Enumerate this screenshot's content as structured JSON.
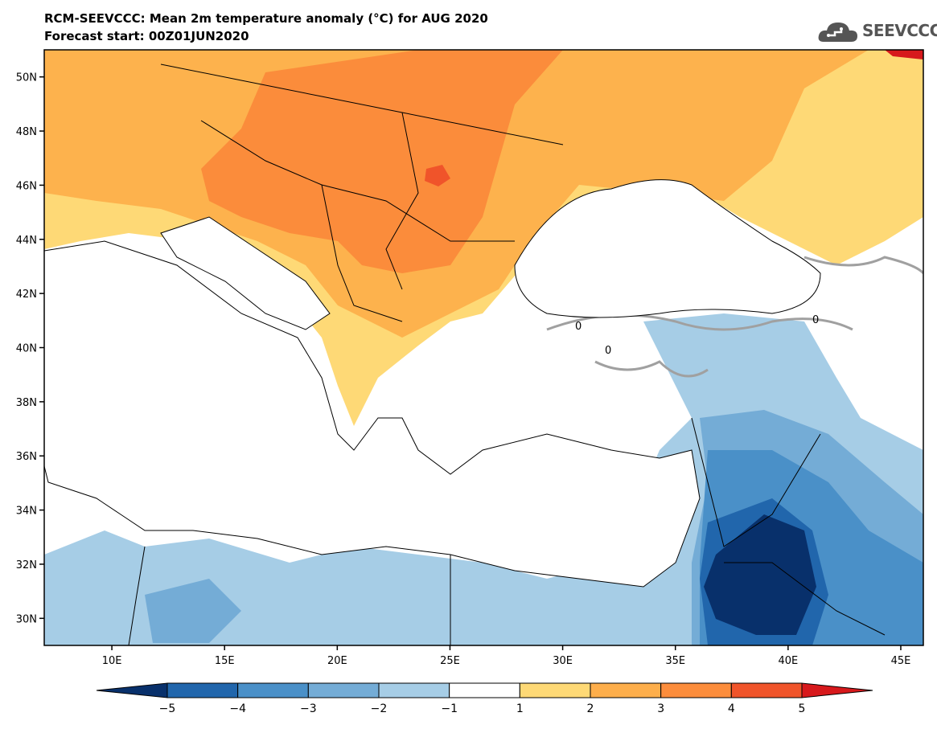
{
  "header": {
    "title_line1": "RCM-SEEVCCC: Mean 2m temperature anomaly (°C) for AUG 2020",
    "title_line2": "Forecast start: 00Z01JUN2020"
  },
  "logo": {
    "text": "SEEVCCC",
    "icon": "cloud-logo-icon"
  },
  "map": {
    "lon_min": 7,
    "lon_max": 46,
    "lat_min": 29,
    "lat_max": 51,
    "lat_ticks": [
      {
        "value": 50,
        "label": "50N"
      },
      {
        "value": 48,
        "label": "48N"
      },
      {
        "value": 46,
        "label": "46N"
      },
      {
        "value": 44,
        "label": "44N"
      },
      {
        "value": 42,
        "label": "42N"
      },
      {
        "value": 40,
        "label": "40N"
      },
      {
        "value": 38,
        "label": "38N"
      },
      {
        "value": 36,
        "label": "36N"
      },
      {
        "value": 34,
        "label": "34N"
      },
      {
        "value": 32,
        "label": "32N"
      },
      {
        "value": 30,
        "label": "30N"
      }
    ],
    "lon_ticks": [
      {
        "value": 10,
        "label": "10E"
      },
      {
        "value": 15,
        "label": "15E"
      },
      {
        "value": 20,
        "label": "20E"
      },
      {
        "value": 25,
        "label": "25E"
      },
      {
        "value": 30,
        "label": "30E"
      },
      {
        "value": 35,
        "label": "35E"
      },
      {
        "value": 40,
        "label": "40E"
      },
      {
        "value": 45,
        "label": "45E"
      }
    ],
    "contour_labels": [
      "0",
      "0",
      "0"
    ]
  },
  "colorbar": {
    "labels": [
      "−5",
      "−4",
      "−3",
      "−2",
      "−1",
      "1",
      "2",
      "3",
      "4",
      "5"
    ],
    "colors": [
      "#08306b",
      "#2166ac",
      "#4a90c8",
      "#74acd6",
      "#a6cde6",
      "#ffffff",
      "#fed976",
      "#fdae4b",
      "#fc8d3c",
      "#f0542a",
      "#d7191c"
    ]
  },
  "palette": {
    "sea": "#ffffff",
    "neutral": "#ffffff",
    "warm1": "#fed976",
    "warm2": "#fdb24d",
    "warm3": "#fb8c3b",
    "warm4": "#f0542a",
    "cool1": "#a6cde6",
    "cool2": "#74acd6",
    "cool3": "#4a90c8",
    "cool4": "#2166ac",
    "cool5": "#08306b",
    "contour": "#a0a0a0"
  }
}
